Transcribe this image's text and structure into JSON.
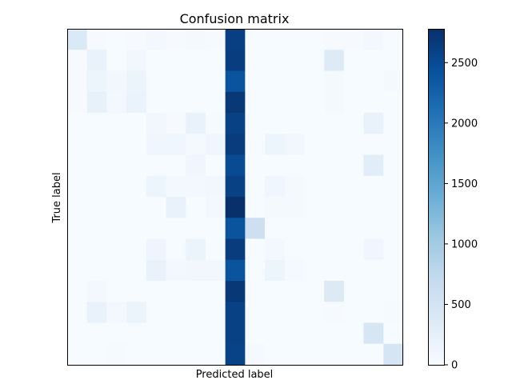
{
  "chart_data": {
    "type": "heatmap",
    "title": "Confusion matrix",
    "xlabel": "Predicted label",
    "ylabel": "True label",
    "x_tick_labels": [],
    "y_tick_labels": [],
    "colormap": "Blues",
    "vmin": 0,
    "vmax": 2780,
    "colorbar_ticks": [
      0,
      500,
      1000,
      1500,
      2000,
      2500
    ],
    "colorbar_tick_labels": [
      "0",
      "500",
      "1000",
      "1500",
      "2000",
      "2500"
    ],
    "grid": false,
    "matrix": [
      [
        400,
        20,
        10,
        20,
        60,
        20,
        40,
        20,
        2620,
        10,
        10,
        10,
        10,
        20,
        20,
        60,
        10
      ],
      [
        20,
        200,
        10,
        80,
        10,
        10,
        10,
        10,
        2640,
        10,
        10,
        10,
        10,
        350,
        10,
        10,
        10
      ],
      [
        20,
        140,
        80,
        160,
        10,
        10,
        10,
        10,
        2400,
        10,
        10,
        10,
        10,
        40,
        10,
        10,
        40
      ],
      [
        20,
        220,
        60,
        180,
        10,
        10,
        10,
        10,
        2700,
        10,
        10,
        10,
        10,
        40,
        10,
        10,
        10
      ],
      [
        10,
        10,
        10,
        10,
        80,
        20,
        200,
        30,
        2600,
        10,
        10,
        10,
        10,
        10,
        10,
        200,
        10
      ],
      [
        10,
        10,
        10,
        10,
        100,
        100,
        40,
        100,
        2650,
        10,
        140,
        90,
        10,
        10,
        10,
        10,
        10
      ],
      [
        10,
        10,
        10,
        10,
        10,
        10,
        100,
        10,
        2500,
        10,
        10,
        10,
        10,
        10,
        10,
        300,
        10
      ],
      [
        10,
        10,
        10,
        10,
        140,
        60,
        60,
        80,
        2600,
        10,
        100,
        40,
        10,
        10,
        10,
        10,
        10
      ],
      [
        10,
        10,
        10,
        10,
        10,
        200,
        10,
        60,
        2780,
        10,
        40,
        40,
        10,
        10,
        10,
        10,
        10
      ],
      [
        10,
        10,
        10,
        10,
        10,
        10,
        10,
        10,
        2400,
        600,
        10,
        10,
        10,
        10,
        10,
        10,
        10
      ],
      [
        10,
        10,
        10,
        10,
        120,
        10,
        170,
        10,
        2650,
        10,
        60,
        10,
        10,
        10,
        10,
        100,
        10
      ],
      [
        10,
        10,
        10,
        10,
        200,
        60,
        80,
        80,
        2400,
        10,
        140,
        50,
        10,
        10,
        10,
        10,
        10
      ],
      [
        10,
        60,
        10,
        10,
        10,
        10,
        10,
        10,
        2700,
        10,
        10,
        10,
        10,
        370,
        10,
        10,
        10
      ],
      [
        10,
        190,
        60,
        160,
        10,
        10,
        10,
        10,
        2600,
        10,
        10,
        10,
        10,
        20,
        10,
        10,
        30
      ],
      [
        10,
        10,
        10,
        10,
        10,
        10,
        10,
        10,
        2600,
        10,
        10,
        10,
        10,
        10,
        10,
        460,
        10
      ],
      [
        10,
        10,
        30,
        10,
        10,
        10,
        10,
        10,
        2580,
        50,
        10,
        10,
        10,
        10,
        10,
        10,
        470
      ]
    ]
  }
}
